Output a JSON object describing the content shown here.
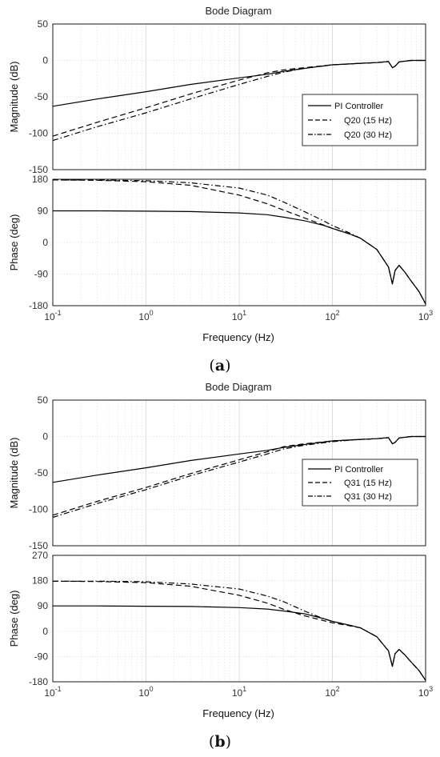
{
  "figures": [
    {
      "label": "a",
      "title": "Bode Diagram",
      "xlabel": "Frequency  (Hz)",
      "legend": [
        "PI Controller",
        "Q20 (15 Hz)",
        "Q20 (30 Hz)"
      ]
    },
    {
      "label": "b",
      "title": "Bode Diagram",
      "xlabel": "Frequency  (Hz)",
      "legend": [
        "PI Controller",
        "Q31 (15 Hz)",
        "Q31 (30 Hz)"
      ]
    }
  ],
  "chart_data": [
    {
      "type": "line",
      "title": "Bode Diagram",
      "xlabel": "Frequency  (Hz)",
      "ylabel": "Magnitude (dB)",
      "xscale": "log",
      "xlim": [
        0.1,
        1000
      ],
      "ylim": [
        -150,
        50
      ],
      "xticks": [
        "10^-1",
        "10^0",
        "10^1",
        "10^2",
        "10^3"
      ],
      "yticks": [
        -150,
        -100,
        -50,
        0,
        50
      ],
      "grid": true,
      "legend_position": "right",
      "series": [
        {
          "name": "PI Controller",
          "style": "solid",
          "x": [
            0.1,
            0.3,
            1,
            3,
            10,
            20,
            30,
            50,
            100,
            200,
            300,
            400,
            440,
            470,
            520,
            700,
            1000
          ],
          "y": [
            -63,
            -53,
            -43,
            -33,
            -24,
            -19,
            -15,
            -11,
            -6,
            -4,
            -3,
            -1.5,
            -10,
            -8,
            -2,
            0,
            0
          ]
        },
        {
          "name": "Q20 (15 Hz)",
          "style": "dashed",
          "x": [
            0.1,
            0.3,
            1,
            3,
            10,
            20,
            30,
            50,
            100,
            200,
            300,
            400,
            440,
            470,
            520,
            700,
            1000
          ],
          "y": [
            -104,
            -85,
            -65,
            -46,
            -27,
            -17,
            -13,
            -10,
            -6,
            -4,
            -3,
            -1.5,
            -10,
            -8,
            -2,
            0,
            0
          ]
        },
        {
          "name": "Q20 (30 Hz)",
          "style": "dashdot",
          "x": [
            0.1,
            0.3,
            1,
            3,
            10,
            20,
            30,
            50,
            100,
            200,
            300,
            400,
            440,
            470,
            520,
            700,
            1000
          ],
          "y": [
            -110,
            -91,
            -72,
            -53,
            -33,
            -22,
            -16,
            -11,
            -6,
            -4,
            -3,
            -1.5,
            -10,
            -8,
            -2,
            0,
            0
          ]
        }
      ]
    },
    {
      "type": "line",
      "ylabel": "Phase (deg)",
      "xlabel": "Frequency  (Hz)",
      "xscale": "log",
      "xlim": [
        0.1,
        1000
      ],
      "ylim": [
        -180,
        180
      ],
      "yticks": [
        -180,
        -90,
        0,
        90,
        180
      ],
      "grid": true,
      "series": [
        {
          "name": "PI Controller",
          "style": "solid",
          "x": [
            0.1,
            0.3,
            1,
            3,
            10,
            20,
            30,
            50,
            80,
            100,
            150,
            200,
            300,
            400,
            440,
            470,
            520,
            600,
            700,
            850,
            1000
          ],
          "y": [
            90,
            90,
            89,
            88,
            84,
            79,
            72,
            62,
            49,
            40,
            25,
            12,
            -20,
            -70,
            -118,
            -80,
            -65,
            -85,
            -110,
            -140,
            -175
          ]
        },
        {
          "name": "Q20 (15 Hz)",
          "style": "dashed",
          "x": [
            0.1,
            0.3,
            1,
            3,
            10,
            20,
            30,
            50,
            80,
            100,
            150,
            200,
            300,
            400,
            440,
            470,
            520,
            600,
            700,
            850,
            1000
          ],
          "y": [
            178,
            177,
            173,
            163,
            135,
            110,
            92,
            70,
            50,
            40,
            25,
            12,
            -20,
            -70,
            -118,
            -80,
            -65,
            -85,
            -110,
            -140,
            -175
          ]
        },
        {
          "name": "Q20 (30 Hz)",
          "style": "dashdot",
          "x": [
            0.1,
            0.3,
            1,
            3,
            10,
            20,
            30,
            50,
            80,
            100,
            150,
            200,
            300,
            400,
            440,
            470,
            520,
            600,
            700,
            850,
            1000
          ],
          "y": [
            178,
            178,
            176,
            170,
            155,
            135,
            115,
            88,
            62,
            48,
            28,
            12,
            -20,
            -70,
            -118,
            -80,
            -65,
            -85,
            -110,
            -140,
            -175
          ]
        }
      ]
    },
    {
      "type": "line",
      "title": "Bode Diagram",
      "xlabel": "Frequency  (Hz)",
      "ylabel": "Magnitude (dB)",
      "xscale": "log",
      "xlim": [
        0.1,
        1000
      ],
      "ylim": [
        -150,
        50
      ],
      "xticks": [
        "10^-1",
        "10^0",
        "10^1",
        "10^2",
        "10^3"
      ],
      "yticks": [
        -150,
        -100,
        -50,
        0,
        50
      ],
      "grid": true,
      "legend_position": "right",
      "series": [
        {
          "name": "PI Controller",
          "style": "solid",
          "x": [
            0.1,
            0.3,
            1,
            3,
            10,
            20,
            30,
            50,
            100,
            200,
            300,
            400,
            440,
            470,
            520,
            700,
            1000
          ],
          "y": [
            -63,
            -53,
            -43,
            -33,
            -24,
            -19,
            -15,
            -11,
            -6,
            -4,
            -3,
            -1.5,
            -10,
            -8,
            -2,
            0,
            0
          ]
        },
        {
          "name": "Q31 (15 Hz)",
          "style": "dashed",
          "x": [
            0.1,
            0.3,
            1,
            3,
            10,
            20,
            30,
            50,
            100,
            200,
            300,
            400,
            440,
            470,
            520,
            700,
            1000
          ],
          "y": [
            -108,
            -89,
            -70,
            -51,
            -32,
            -21,
            -14,
            -10,
            -6,
            -4,
            -3,
            -1.5,
            -10,
            -8,
            -2,
            0,
            0
          ]
        },
        {
          "name": "Q31 (30 Hz)",
          "style": "dashdot",
          "x": [
            0.1,
            0.3,
            1,
            3,
            10,
            20,
            30,
            50,
            100,
            200,
            300,
            400,
            440,
            470,
            520,
            700,
            1000
          ],
          "y": [
            -111,
            -92,
            -73,
            -54,
            -35,
            -24,
            -17,
            -12,
            -7,
            -4,
            -3,
            -1.5,
            -10,
            -8,
            -2,
            0,
            0
          ]
        }
      ]
    },
    {
      "type": "line",
      "ylabel": "Phase (deg)",
      "xlabel": "Frequency  (Hz)",
      "xscale": "log",
      "xlim": [
        0.1,
        1000
      ],
      "ylim": [
        -180,
        270
      ],
      "yticks": [
        -180,
        -90,
        0,
        90,
        180,
        270
      ],
      "grid": true,
      "series": [
        {
          "name": "PI Controller",
          "style": "solid",
          "x": [
            0.1,
            0.3,
            1,
            3,
            10,
            20,
            30,
            50,
            80,
            100,
            150,
            200,
            300,
            400,
            440,
            470,
            520,
            600,
            700,
            850,
            1000
          ],
          "y": [
            90,
            90,
            89,
            88,
            84,
            79,
            72,
            62,
            45,
            35,
            22,
            12,
            -20,
            -70,
            -125,
            -80,
            -65,
            -85,
            -110,
            -140,
            -175
          ]
        },
        {
          "name": "Q31 (15 Hz)",
          "style": "dashed",
          "x": [
            0.1,
            0.3,
            1,
            3,
            10,
            20,
            30,
            50,
            80,
            100,
            150,
            200,
            300,
            400,
            440,
            470,
            520,
            600,
            700,
            850,
            1000
          ],
          "y": [
            178,
            177,
            173,
            160,
            128,
            100,
            78,
            55,
            38,
            30,
            20,
            12,
            -20,
            -70,
            -125,
            -80,
            -65,
            -85,
            -110,
            -140,
            -175
          ]
        },
        {
          "name": "Q31 (30 Hz)",
          "style": "dashdot",
          "x": [
            0.1,
            0.3,
            1,
            3,
            10,
            20,
            30,
            50,
            80,
            100,
            150,
            200,
            300,
            400,
            440,
            470,
            520,
            600,
            700,
            850,
            1000
          ],
          "y": [
            178,
            178,
            176,
            168,
            150,
            125,
            105,
            72,
            45,
            35,
            22,
            12,
            -20,
            -70,
            -125,
            -80,
            -65,
            -85,
            -110,
            -140,
            -175
          ]
        }
      ]
    }
  ]
}
